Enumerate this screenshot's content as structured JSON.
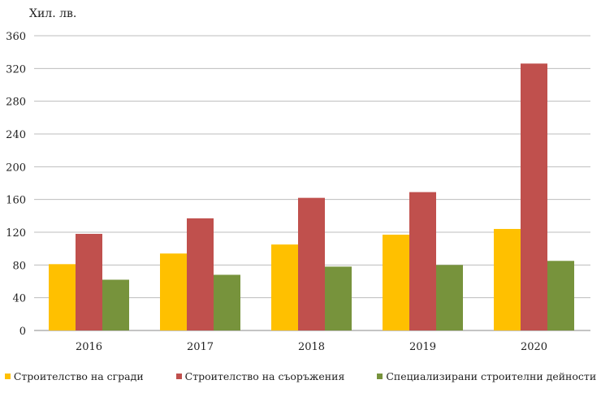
{
  "chart_data": {
    "type": "bar",
    "title": "",
    "ylabel": "Хил. лв.",
    "xlabel": "",
    "categories": [
      "2016",
      "2017",
      "2018",
      "2019",
      "2020"
    ],
    "series": [
      {
        "name": "Строителство на сгради",
        "color": "#FFC000",
        "values": [
          81,
          94,
          105,
          117,
          124
        ]
      },
      {
        "name": "Строителство на съоръжения",
        "color": "#C0504D",
        "values": [
          118,
          137,
          162,
          169,
          326
        ]
      },
      {
        "name": "Специализирани строителни дейности",
        "color": "#77933C",
        "values": [
          62,
          68,
          78,
          80,
          85
        ]
      }
    ],
    "ylim": [
      0,
      360
    ],
    "yticks": [
      "0",
      "40",
      "80",
      "120",
      "160",
      "200",
      "240",
      "280",
      "320",
      "360"
    ],
    "grid": true,
    "legend": "bottom"
  }
}
